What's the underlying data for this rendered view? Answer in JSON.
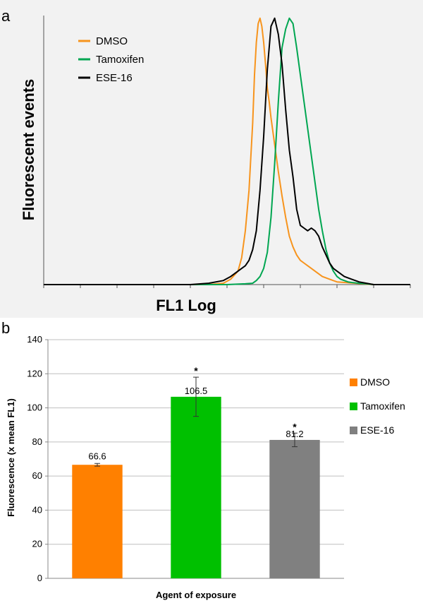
{
  "chart_data": [
    {
      "type": "line",
      "panel": "a",
      "title": "",
      "xlabel": "FL1 Log",
      "ylabel": "Fluorescent events",
      "xlim": [
        0,
        100
      ],
      "ylim": [
        0,
        1
      ],
      "grid": false,
      "legend_position": "top-left",
      "series": [
        {
          "name": "DMSO",
          "color": "#f7941d",
          "x": [
            0,
            10,
            20,
            30,
            40,
            45,
            49,
            51,
            53,
            54,
            55,
            56,
            57,
            57.5,
            58,
            58.5,
            59,
            59.5,
            60,
            60.5,
            61,
            61.5,
            62,
            63,
            64,
            65,
            66,
            67,
            68,
            69,
            70,
            71,
            72,
            74,
            76,
            78,
            80,
            85,
            90,
            100
          ],
          "y": [
            0,
            0,
            0,
            0,
            0,
            0,
            0.005,
            0.02,
            0.05,
            0.1,
            0.2,
            0.35,
            0.6,
            0.78,
            0.9,
            0.97,
            0.99,
            0.96,
            0.9,
            0.82,
            0.73,
            0.68,
            0.62,
            0.52,
            0.42,
            0.33,
            0.25,
            0.18,
            0.14,
            0.11,
            0.09,
            0.08,
            0.07,
            0.05,
            0.03,
            0.02,
            0.01,
            0.005,
            0,
            0
          ]
        },
        {
          "name": "Tamoxifen",
          "color": "#00a651",
          "x": [
            0,
            10,
            20,
            30,
            40,
            50,
            55,
            57,
            58,
            59,
            60,
            61,
            62,
            63,
            64,
            65,
            66,
            67,
            68,
            69,
            70,
            71,
            72,
            73,
            74,
            75,
            76,
            77,
            78,
            79,
            80,
            81,
            82,
            83,
            84,
            86,
            88,
            90,
            95,
            100
          ],
          "y": [
            0,
            0,
            0,
            0,
            0,
            0,
            0.003,
            0.005,
            0.015,
            0.03,
            0.06,
            0.12,
            0.25,
            0.45,
            0.68,
            0.88,
            0.95,
            0.99,
            0.97,
            0.88,
            0.78,
            0.68,
            0.58,
            0.48,
            0.38,
            0.28,
            0.2,
            0.13,
            0.08,
            0.05,
            0.03,
            0.02,
            0.015,
            0.01,
            0.008,
            0.005,
            0.003,
            0,
            0,
            0
          ]
        },
        {
          "name": "ESE-16",
          "color": "#000000",
          "x": [
            0,
            10,
            20,
            30,
            40,
            45,
            49,
            51,
            53,
            55,
            56,
            57,
            58,
            59,
            60,
            61,
            62,
            63,
            64,
            65,
            66,
            67,
            68,
            69,
            70,
            71,
            72,
            73,
            74,
            75,
            76,
            77,
            78,
            79,
            80,
            82,
            84,
            86,
            88,
            90,
            95,
            100
          ],
          "y": [
            0,
            0,
            0,
            0,
            0,
            0.005,
            0.015,
            0.03,
            0.05,
            0.07,
            0.09,
            0.13,
            0.2,
            0.35,
            0.55,
            0.8,
            0.96,
            0.99,
            0.93,
            0.82,
            0.65,
            0.5,
            0.4,
            0.28,
            0.22,
            0.21,
            0.2,
            0.21,
            0.2,
            0.18,
            0.14,
            0.11,
            0.08,
            0.06,
            0.05,
            0.03,
            0.02,
            0.01,
            0.005,
            0,
            0,
            0
          ]
        }
      ]
    },
    {
      "type": "bar",
      "panel": "b",
      "title": "",
      "categories": [
        "DMSO",
        "Tamoxifen",
        "ESE-16"
      ],
      "values": [
        66.6,
        106.5,
        81.2
      ],
      "data_labels": [
        "66.6",
        "106.5",
        "81.2"
      ],
      "errors": [
        0.8,
        11.5,
        4.0
      ],
      "significance": [
        "",
        "*",
        "*"
      ],
      "colors": [
        "#ff8000",
        "#00c000",
        "#808080"
      ],
      "xlabel": "Agent of exposure",
      "ylabel": "Fluorescence (x mean FL1)",
      "ylim": [
        0,
        140
      ],
      "yticks": [
        0,
        20,
        40,
        60,
        80,
        100,
        120,
        140
      ],
      "ytick_labels": [
        "0",
        "20",
        "40",
        "60",
        "80",
        "100",
        "120",
        "140"
      ],
      "grid": true,
      "legend_position": "right"
    }
  ],
  "panel_labels": {
    "a": "a",
    "b": "b"
  }
}
